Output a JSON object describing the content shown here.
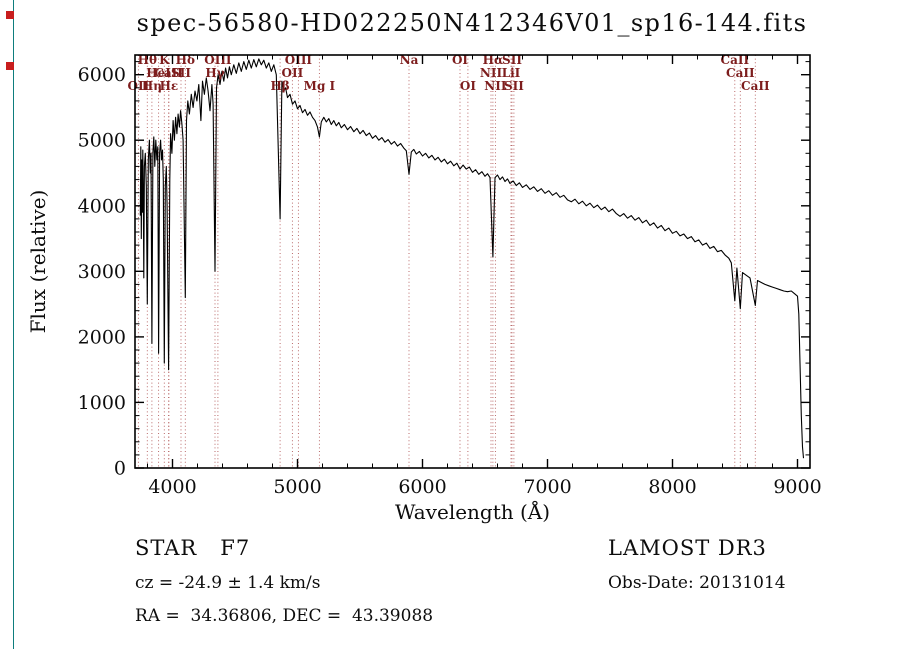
{
  "title": "spec-56580-HD022250N412346V01_sp16-144.fits",
  "annotations": {
    "class_label": "STAR   F7",
    "survey": "LAMOST DR3",
    "cz": "cz = -24.9 ± 1.4 km/s",
    "obs_date": "Obs-Date: 20131014",
    "radec": "RA =  34.36806, DEC =  43.39088"
  },
  "chart_data": {
    "type": "line",
    "title": "spec-56580-HD022250N412346V01_sp16-144.fits",
    "xlabel": "Wavelength (Å)",
    "ylabel": "Flux (relative)",
    "xlim": [
      3700,
      9100
    ],
    "ylim": [
      0,
      6300
    ],
    "x_ticks": [
      4000,
      5000,
      6000,
      7000,
      8000,
      9000
    ],
    "y_ticks": [
      0,
      1000,
      2000,
      3000,
      4000,
      5000,
      6000
    ],
    "x_minor_step": 200,
    "y_minor_step": 200,
    "grid": false,
    "legend": "none",
    "line_color": "#000000",
    "frame_color": "#000000",
    "marker_line_color": "#b35b5b",
    "marker_label_color": "#7d1d1d",
    "spectral_lines": [
      {
        "wl": 3727,
        "label": "OII",
        "row": 2
      },
      {
        "wl": 3798,
        "label": "Hθ",
        "row": 0
      },
      {
        "wl": 3835,
        "label": "Hη",
        "row": 2
      },
      {
        "wl": 3889,
        "label": "HeI",
        "row": 1
      },
      {
        "wl": 3934,
        "label": "K",
        "row": 0
      },
      {
        "wl": 3969,
        "label": "CaII",
        "row": 1
      },
      {
        "wl": 3971,
        "label": "Hε",
        "row": 2
      },
      {
        "wl": 4068,
        "label": "SII",
        "row": 1
      },
      {
        "wl": 4102,
        "label": "Hδ",
        "row": 0
      },
      {
        "wl": 4340,
        "label": "Hγ",
        "row": 1
      },
      {
        "wl": 4363,
        "label": "OIII",
        "row": 0
      },
      {
        "wl": 4861,
        "label": "Hβ",
        "row": 2
      },
      {
        "wl": 4959,
        "label": "OII",
        "row": 1
      },
      {
        "wl": 5007,
        "label": "OIII",
        "row": 0
      },
      {
        "wl": 5175,
        "label": "Mg I",
        "row": 2
      },
      {
        "wl": 5892,
        "label": "Na",
        "row": 0
      },
      {
        "wl": 6300,
        "label": "OI",
        "row": 0
      },
      {
        "wl": 6363,
        "label": "OI",
        "row": 2
      },
      {
        "wl": 6548,
        "label": "NII",
        "row": 1
      },
      {
        "wl": 6563,
        "label": "Hα",
        "row": 0
      },
      {
        "wl": 6583,
        "label": "NII",
        "row": 2
      },
      {
        "wl": 6708,
        "label": "LiI",
        "row": 1
      },
      {
        "wl": 6716,
        "label": "SII",
        "row": 0
      },
      {
        "wl": 6731,
        "label": "SII",
        "row": 2
      },
      {
        "wl": 8498,
        "label": "CaII",
        "row": 0
      },
      {
        "wl": 8542,
        "label": "CaII",
        "row": 1
      },
      {
        "wl": 8662,
        "label": "CaII",
        "row": 2
      }
    ],
    "points": [
      [
        3742,
        3850
      ],
      [
        3746,
        4900
      ],
      [
        3750,
        3500
      ],
      [
        3754,
        4700
      ],
      [
        3758,
        3900
      ],
      [
        3762,
        4850
      ],
      [
        3766,
        4200
      ],
      [
        3770,
        2900
      ],
      [
        3775,
        4600
      ],
      [
        3782,
        4800
      ],
      [
        3790,
        4300
      ],
      [
        3798,
        2500
      ],
      [
        3806,
        4700
      ],
      [
        3815,
        5000
      ],
      [
        3822,
        4500
      ],
      [
        3828,
        4800
      ],
      [
        3835,
        1900
      ],
      [
        3843,
        4800
      ],
      [
        3850,
        5050
      ],
      [
        3858,
        4600
      ],
      [
        3866,
        5000
      ],
      [
        3875,
        4700
      ],
      [
        3882,
        4900
      ],
      [
        3889,
        1750
      ],
      [
        3897,
        4800
      ],
      [
        3905,
        5000
      ],
      [
        3912,
        4700
      ],
      [
        3920,
        4850
      ],
      [
        3926,
        4400
      ],
      [
        3934,
        1600
      ],
      [
        3942,
        4300
      ],
      [
        3950,
        4600
      ],
      [
        3957,
        4000
      ],
      [
        3969,
        1500
      ],
      [
        3978,
        4400
      ],
      [
        3985,
        5100
      ],
      [
        3995,
        4800
      ],
      [
        4005,
        5300
      ],
      [
        4015,
        5000
      ],
      [
        4025,
        5350
      ],
      [
        4035,
        5100
      ],
      [
        4045,
        5400
      ],
      [
        4055,
        5200
      ],
      [
        4065,
        5450
      ],
      [
        4075,
        5250
      ],
      [
        4085,
        5000
      ],
      [
        4102,
        2600
      ],
      [
        4112,
        5300
      ],
      [
        4122,
        5600
      ],
      [
        4135,
        5400
      ],
      [
        4150,
        5700
      ],
      [
        4165,
        5500
      ],
      [
        4180,
        5750
      ],
      [
        4195,
        5600
      ],
      [
        4210,
        5850
      ],
      [
        4227,
        5300
      ],
      [
        4240,
        5900
      ],
      [
        4255,
        5700
      ],
      [
        4270,
        5950
      ],
      [
        4285,
        5750
      ],
      [
        4300,
        5450
      ],
      [
        4315,
        5850
      ],
      [
        4325,
        5550
      ],
      [
        4340,
        3000
      ],
      [
        4352,
        5800
      ],
      [
        4365,
        6000
      ],
      [
        4380,
        5850
      ],
      [
        4395,
        6050
      ],
      [
        4410,
        5900
      ],
      [
        4425,
        6100
      ],
      [
        4440,
        5950
      ],
      [
        4455,
        6120
      ],
      [
        4470,
        6000
      ],
      [
        4490,
        6150
      ],
      [
        4510,
        6020
      ],
      [
        4530,
        6180
      ],
      [
        4550,
        6050
      ],
      [
        4570,
        6200
      ],
      [
        4590,
        6080
      ],
      [
        4610,
        6220
      ],
      [
        4630,
        6100
      ],
      [
        4650,
        6230
      ],
      [
        4670,
        6120
      ],
      [
        4690,
        6240
      ],
      [
        4710,
        6150
      ],
      [
        4730,
        6220
      ],
      [
        4750,
        6100
      ],
      [
        4770,
        6180
      ],
      [
        4790,
        6050
      ],
      [
        4810,
        6150
      ],
      [
        4830,
        6000
      ],
      [
        4861,
        3800
      ],
      [
        4875,
        5900
      ],
      [
        4890,
        5750
      ],
      [
        4905,
        5800
      ],
      [
        4920,
        5650
      ],
      [
        4940,
        5700
      ],
      [
        4960,
        5550
      ],
      [
        4980,
        5600
      ],
      [
        5000,
        5480
      ],
      [
        5020,
        5530
      ],
      [
        5040,
        5420
      ],
      [
        5060,
        5470
      ],
      [
        5080,
        5380
      ],
      [
        5100,
        5430
      ],
      [
        5120,
        5350
      ],
      [
        5140,
        5300
      ],
      [
        5160,
        5200
      ],
      [
        5175,
        5050
      ],
      [
        5190,
        5280
      ],
      [
        5210,
        5350
      ],
      [
        5230,
        5280
      ],
      [
        5250,
        5330
      ],
      [
        5270,
        5240
      ],
      [
        5290,
        5300
      ],
      [
        5310,
        5220
      ],
      [
        5330,
        5270
      ],
      [
        5350,
        5190
      ],
      [
        5375,
        5240
      ],
      [
        5400,
        5160
      ],
      [
        5425,
        5210
      ],
      [
        5450,
        5130
      ],
      [
        5475,
        5180
      ],
      [
        5500,
        5100
      ],
      [
        5525,
        5150
      ],
      [
        5550,
        5070
      ],
      [
        5575,
        5110
      ],
      [
        5600,
        5030
      ],
      [
        5625,
        5070
      ],
      [
        5650,
        5000
      ],
      [
        5675,
        5040
      ],
      [
        5700,
        4970
      ],
      [
        5725,
        5010
      ],
      [
        5750,
        4940
      ],
      [
        5775,
        4980
      ],
      [
        5800,
        4910
      ],
      [
        5825,
        4950
      ],
      [
        5850,
        4880
      ],
      [
        5870,
        4840
      ],
      [
        5892,
        4480
      ],
      [
        5910,
        4820
      ],
      [
        5930,
        4860
      ],
      [
        5950,
        4790
      ],
      [
        5975,
        4830
      ],
      [
        6000,
        4760
      ],
      [
        6025,
        4800
      ],
      [
        6050,
        4730
      ],
      [
        6075,
        4770
      ],
      [
        6100,
        4700
      ],
      [
        6125,
        4740
      ],
      [
        6150,
        4670
      ],
      [
        6175,
        4710
      ],
      [
        6200,
        4640
      ],
      [
        6225,
        4680
      ],
      [
        6250,
        4610
      ],
      [
        6275,
        4650
      ],
      [
        6300,
        4560
      ],
      [
        6325,
        4620
      ],
      [
        6350,
        4560
      ],
      [
        6375,
        4590
      ],
      [
        6400,
        4510
      ],
      [
        6425,
        4550
      ],
      [
        6450,
        4480
      ],
      [
        6475,
        4520
      ],
      [
        6500,
        4450
      ],
      [
        6520,
        4490
      ],
      [
        6540,
        4430
      ],
      [
        6563,
        3220
      ],
      [
        6580,
        4430
      ],
      [
        6600,
        4470
      ],
      [
        6620,
        4400
      ],
      [
        6640,
        4440
      ],
      [
        6660,
        4370
      ],
      [
        6680,
        4410
      ],
      [
        6700,
        4340
      ],
      [
        6725,
        4380
      ],
      [
        6750,
        4310
      ],
      [
        6775,
        4350
      ],
      [
        6800,
        4280
      ],
      [
        6830,
        4320
      ],
      [
        6860,
        4250
      ],
      [
        6890,
        4290
      ],
      [
        6920,
        4220
      ],
      [
        6950,
        4260
      ],
      [
        6980,
        4190
      ],
      [
        7010,
        4230
      ],
      [
        7040,
        4160
      ],
      [
        7070,
        4200
      ],
      [
        7100,
        4130
      ],
      [
        7130,
        4160
      ],
      [
        7160,
        4090
      ],
      [
        7190,
        4060
      ],
      [
        7220,
        4100
      ],
      [
        7250,
        4030
      ],
      [
        7280,
        4070
      ],
      [
        7310,
        4000
      ],
      [
        7340,
        4040
      ],
      [
        7370,
        3970
      ],
      [
        7400,
        4010
      ],
      [
        7430,
        3940
      ],
      [
        7460,
        3980
      ],
      [
        7490,
        3910
      ],
      [
        7520,
        3950
      ],
      [
        7550,
        3880
      ],
      [
        7580,
        3840
      ],
      [
        7610,
        3880
      ],
      [
        7640,
        3810
      ],
      [
        7670,
        3850
      ],
      [
        7700,
        3780
      ],
      [
        7730,
        3820
      ],
      [
        7760,
        3740
      ],
      [
        7790,
        3780
      ],
      [
        7820,
        3700
      ],
      [
        7850,
        3740
      ],
      [
        7880,
        3660
      ],
      [
        7910,
        3700
      ],
      [
        7940,
        3620
      ],
      [
        7970,
        3660
      ],
      [
        8000,
        3580
      ],
      [
        8030,
        3610
      ],
      [
        8060,
        3540
      ],
      [
        8090,
        3570
      ],
      [
        8120,
        3500
      ],
      [
        8150,
        3530
      ],
      [
        8180,
        3450
      ],
      [
        8210,
        3480
      ],
      [
        8240,
        3400
      ],
      [
        8270,
        3430
      ],
      [
        8300,
        3350
      ],
      [
        8330,
        3380
      ],
      [
        8360,
        3300
      ],
      [
        8390,
        3320
      ],
      [
        8420,
        3250
      ],
      [
        8450,
        3200
      ],
      [
        8470,
        3130
      ],
      [
        8498,
        2550
      ],
      [
        8515,
        3050
      ],
      [
        8542,
        2430
      ],
      [
        8560,
        2980
      ],
      [
        8590,
        2940
      ],
      [
        8620,
        2900
      ],
      [
        8662,
        2480
      ],
      [
        8680,
        2860
      ],
      [
        8710,
        2830
      ],
      [
        8740,
        2800
      ],
      [
        8770,
        2780
      ],
      [
        8800,
        2760
      ],
      [
        8830,
        2740
      ],
      [
        8860,
        2720
      ],
      [
        8890,
        2700
      ],
      [
        8920,
        2690
      ],
      [
        8950,
        2700
      ],
      [
        8975,
        2660
      ],
      [
        9000,
        2620
      ],
      [
        9010,
        2350
      ],
      [
        9020,
        1600
      ],
      [
        9030,
        800
      ],
      [
        9040,
        320
      ],
      [
        9048,
        150
      ]
    ]
  }
}
